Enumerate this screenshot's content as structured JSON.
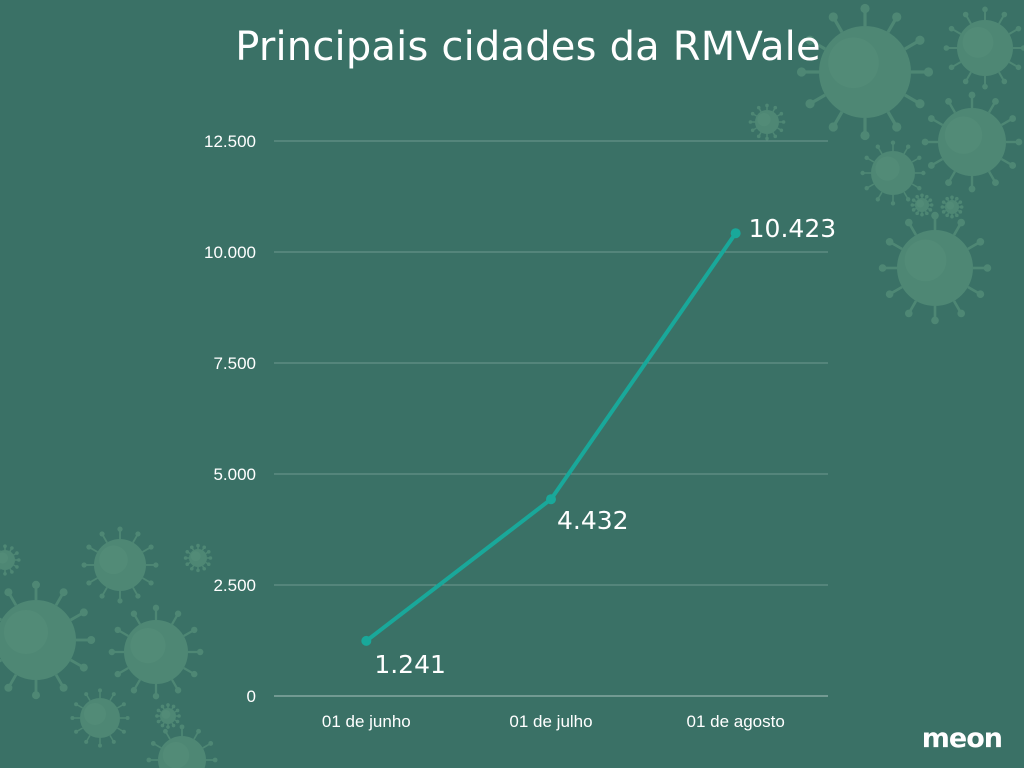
{
  "title": "Principais cidades da RMVale",
  "logo": "meon",
  "colors": {
    "background": "#3a7166",
    "line": "#19a89a",
    "grid": "#6e9990",
    "text": "#ffffff",
    "virus": "#5f9a80"
  },
  "chart_data": {
    "type": "line",
    "title": "Principais cidades da RMVale",
    "categories": [
      "01 de junho",
      "01 de julho",
      "01 de agosto"
    ],
    "series": [
      {
        "values": [
          1241,
          4432,
          10423
        ]
      }
    ],
    "data_labels": [
      "1.241",
      "4.432",
      "10.423"
    ],
    "yticks": [
      0,
      2500,
      5000,
      7500,
      10000,
      12500
    ],
    "ytick_labels": [
      "0",
      "2.500",
      "5.000",
      "7.500",
      "10.000",
      "12.500"
    ],
    "ylim": [
      0,
      12500
    ],
    "grid": true,
    "legend": "none"
  }
}
